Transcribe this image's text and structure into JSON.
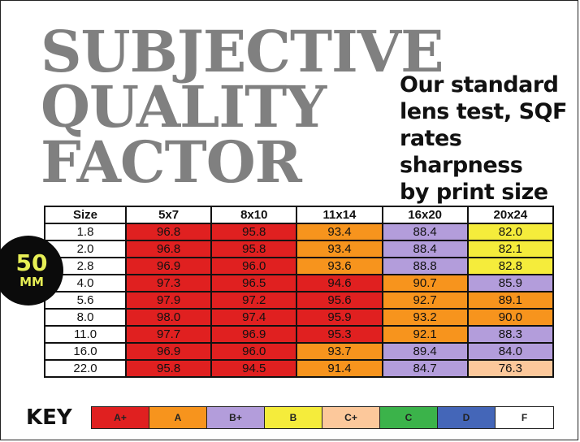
{
  "title": {
    "lines": [
      "SUBJECTIVE",
      "QUALITY",
      "FACTOR"
    ]
  },
  "subtitle": {
    "lines": [
      "Our standard",
      "lens test, SQF",
      "rates sharpness",
      "by print size"
    ]
  },
  "badge": {
    "number": "50",
    "unit": "MM"
  },
  "colors": {
    "A+": "#e02020",
    "A": "#f7941d",
    "B+": "#b39ddb",
    "B": "#f5ec3b",
    "C+": "#fcc89b",
    "C": "#3bb34a",
    "D": "#4466b8",
    "F": "#ffffff"
  },
  "chart_data": {
    "type": "table",
    "columns": [
      "Size",
      "5x7",
      "8x10",
      "11x14",
      "16x20",
      "20x24"
    ],
    "rows": [
      {
        "size": "1.8",
        "cells": [
          {
            "v": "96.8",
            "g": "A+"
          },
          {
            "v": "95.8",
            "g": "A+"
          },
          {
            "v": "93.4",
            "g": "A"
          },
          {
            "v": "88.4",
            "g": "B+"
          },
          {
            "v": "82.0",
            "g": "B"
          }
        ]
      },
      {
        "size": "2.0",
        "cells": [
          {
            "v": "96.8",
            "g": "A+"
          },
          {
            "v": "95.8",
            "g": "A+"
          },
          {
            "v": "93.4",
            "g": "A"
          },
          {
            "v": "88.4",
            "g": "B+"
          },
          {
            "v": "82.1",
            "g": "B"
          }
        ]
      },
      {
        "size": "2.8",
        "cells": [
          {
            "v": "96.9",
            "g": "A+"
          },
          {
            "v": "96.0",
            "g": "A+"
          },
          {
            "v": "93.6",
            "g": "A"
          },
          {
            "v": "88.8",
            "g": "B+"
          },
          {
            "v": "82.8",
            "g": "B"
          }
        ]
      },
      {
        "size": "4.0",
        "cells": [
          {
            "v": "97.3",
            "g": "A+"
          },
          {
            "v": "96.5",
            "g": "A+"
          },
          {
            "v": "94.6",
            "g": "A+"
          },
          {
            "v": "90.7",
            "g": "A"
          },
          {
            "v": "85.9",
            "g": "B+"
          }
        ]
      },
      {
        "size": "5.6",
        "cells": [
          {
            "v": "97.9",
            "g": "A+"
          },
          {
            "v": "97.2",
            "g": "A+"
          },
          {
            "v": "95.6",
            "g": "A+"
          },
          {
            "v": "92.7",
            "g": "A"
          },
          {
            "v": "89.1",
            "g": "A"
          }
        ]
      },
      {
        "size": "8.0",
        "cells": [
          {
            "v": "98.0",
            "g": "A+"
          },
          {
            "v": "97.4",
            "g": "A+"
          },
          {
            "v": "95.9",
            "g": "A+"
          },
          {
            "v": "93.2",
            "g": "A"
          },
          {
            "v": "90.0",
            "g": "A"
          }
        ]
      },
      {
        "size": "11.0",
        "cells": [
          {
            "v": "97.7",
            "g": "A+"
          },
          {
            "v": "96.9",
            "g": "A+"
          },
          {
            "v": "95.3",
            "g": "A+"
          },
          {
            "v": "92.1",
            "g": "A"
          },
          {
            "v": "88.3",
            "g": "B+"
          }
        ]
      },
      {
        "size": "16.0",
        "cells": [
          {
            "v": "96.9",
            "g": "A+"
          },
          {
            "v": "96.0",
            "g": "A+"
          },
          {
            "v": "93.7",
            "g": "A"
          },
          {
            "v": "89.4",
            "g": "B+"
          },
          {
            "v": "84.0",
            "g": "B+"
          }
        ]
      },
      {
        "size": "22.0",
        "cells": [
          {
            "v": "95.8",
            "g": "A+"
          },
          {
            "v": "94.5",
            "g": "A+"
          },
          {
            "v": "91.4",
            "g": "A"
          },
          {
            "v": "84.7",
            "g": "B+"
          },
          {
            "v": "76.3",
            "g": "C+"
          }
        ]
      }
    ]
  },
  "key": {
    "label": "KEY",
    "grades": [
      "A+",
      "A",
      "B+",
      "B",
      "C+",
      "C",
      "D",
      "F"
    ]
  }
}
